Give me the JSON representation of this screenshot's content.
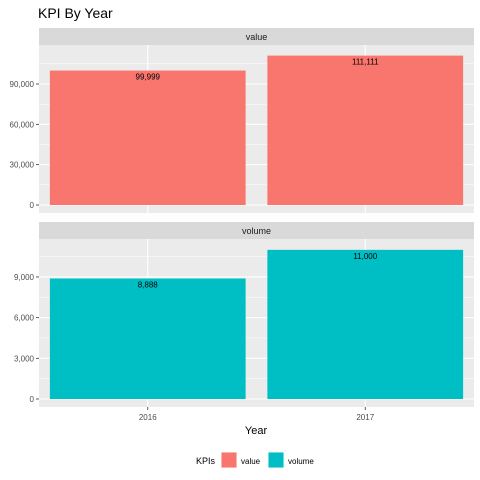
{
  "chart_data": {
    "type": "bar",
    "title": "KPI By Year",
    "xlabel": "Year",
    "categories": [
      "2016",
      "2017"
    ],
    "facets": [
      {
        "name": "value",
        "values": [
          99999,
          111111
        ],
        "labels": [
          "99,999",
          "111,111"
        ],
        "ylim": [
          0,
          119000
        ],
        "ticks": [
          0,
          30000,
          60000,
          90000
        ],
        "tick_labels": [
          "0",
          "30,000",
          "60,000",
          "90,000"
        ],
        "color": "#F8766D"
      },
      {
        "name": "volume",
        "values": [
          8888,
          11000
        ],
        "labels": [
          "8,888",
          "11,000"
        ],
        "ylim": [
          0,
          11800
        ],
        "ticks": [
          0,
          3000,
          6000,
          9000
        ],
        "tick_labels": [
          "0",
          "3,000",
          "6,000",
          "9,000"
        ],
        "color": "#00BFC4"
      }
    ],
    "legend": {
      "title": "KPIs",
      "position": "bottom",
      "items": [
        {
          "label": "value",
          "color": "#F8766D"
        },
        {
          "label": "volume",
          "color": "#00BFC4"
        }
      ]
    },
    "grid": true
  }
}
